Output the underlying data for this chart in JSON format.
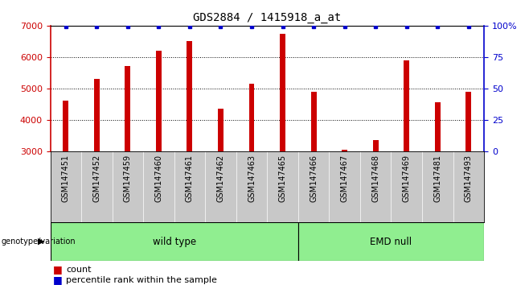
{
  "title": "GDS2884 / 1415918_a_at",
  "samples": [
    "GSM147451",
    "GSM147452",
    "GSM147459",
    "GSM147460",
    "GSM147461",
    "GSM147462",
    "GSM147463",
    "GSM147465",
    "GSM147466",
    "GSM147467",
    "GSM147468",
    "GSM147469",
    "GSM147481",
    "GSM147493"
  ],
  "counts": [
    4600,
    5300,
    5700,
    6200,
    6500,
    4350,
    5150,
    6750,
    4900,
    3050,
    3350,
    5900,
    4550,
    4900
  ],
  "percentile_ranks": [
    99,
    99,
    99,
    99,
    99,
    99,
    99,
    99,
    99,
    99,
    99,
    99,
    99,
    99
  ],
  "groups": [
    {
      "label": "wild type",
      "start": 0,
      "end": 8
    },
    {
      "label": "EMD null",
      "start": 8,
      "end": 14
    }
  ],
  "ylim_left": [
    3000,
    7000
  ],
  "ylim_right": [
    0,
    100
  ],
  "yticks_left": [
    3000,
    4000,
    5000,
    6000,
    7000
  ],
  "yticks_right": [
    0,
    25,
    50,
    75,
    100
  ],
  "bar_color": "#CC0000",
  "dot_color": "#0000CC",
  "bg_color": "#C8C8C8",
  "plot_bg": "#FFFFFF",
  "green_color": "#90EE90",
  "title_color": "#000000",
  "left_axis_color": "#CC0000",
  "right_axis_color": "#0000CC",
  "legend_count_color": "#CC0000",
  "legend_pct_color": "#0000CC",
  "bar_width": 0.18
}
